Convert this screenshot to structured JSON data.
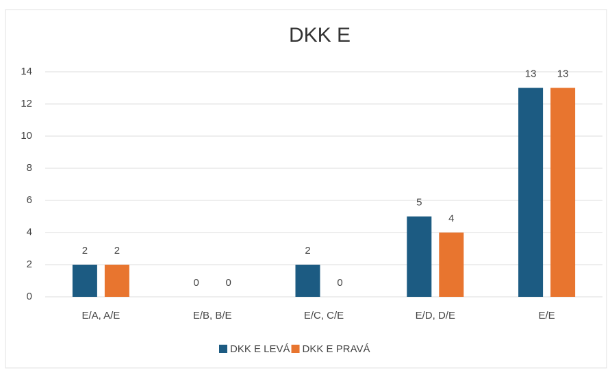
{
  "chart_data": {
    "type": "bar",
    "title": "DKK E",
    "categories": [
      "E/A, A/E",
      "E/B, B/E",
      "E/C, C/E",
      "E/D, D/E",
      "E/E"
    ],
    "series": [
      {
        "name": "DKK E LEVÁ",
        "color": "#1c5b82",
        "values": [
          2,
          0,
          2,
          5,
          13
        ]
      },
      {
        "name": "DKK E PRAVÁ",
        "color": "#e8752f",
        "values": [
          2,
          0,
          0,
          4,
          13
        ]
      }
    ],
    "ylim": [
      0,
      14
    ],
    "yticks": [
      0,
      2,
      4,
      6,
      8,
      10,
      12,
      14
    ],
    "grid": true,
    "legend": "bottom"
  }
}
